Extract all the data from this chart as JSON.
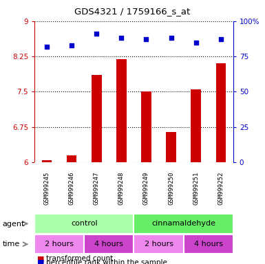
{
  "title": "GDS4321 / 1759166_s_at",
  "samples": [
    "GSM999245",
    "GSM999246",
    "GSM999247",
    "GSM999248",
    "GSM999249",
    "GSM999250",
    "GSM999251",
    "GSM999252"
  ],
  "red_values": [
    6.05,
    6.15,
    7.85,
    8.2,
    7.5,
    6.65,
    7.55,
    8.1
  ],
  "blue_values": [
    82,
    83,
    91,
    88,
    87,
    88,
    85,
    87
  ],
  "ylim_left": [
    6,
    9
  ],
  "ylim_right": [
    0,
    100
  ],
  "yticks_left": [
    6,
    6.75,
    7.5,
    8.25,
    9
  ],
  "yticks_right": [
    0,
    25,
    50,
    75,
    100
  ],
  "bar_color": "#cc0000",
  "dot_color": "#0000cc",
  "bar_width": 0.4,
  "agent_control_color": "#aaffaa",
  "agent_cinna_color": "#66ee66",
  "time_color_light": "#ee88ee",
  "time_color_dark": "#cc44cc",
  "sample_bg_color": "#cccccc",
  "agent_label": "agent",
  "time_label": "time",
  "legend_red": "transformed count",
  "legend_blue": "percentile rank within the sample",
  "control_label": "control",
  "cinna_label": "cinnamaldehyde",
  "time_labels": [
    "2 hours",
    "4 hours",
    "2 hours",
    "4 hours"
  ]
}
